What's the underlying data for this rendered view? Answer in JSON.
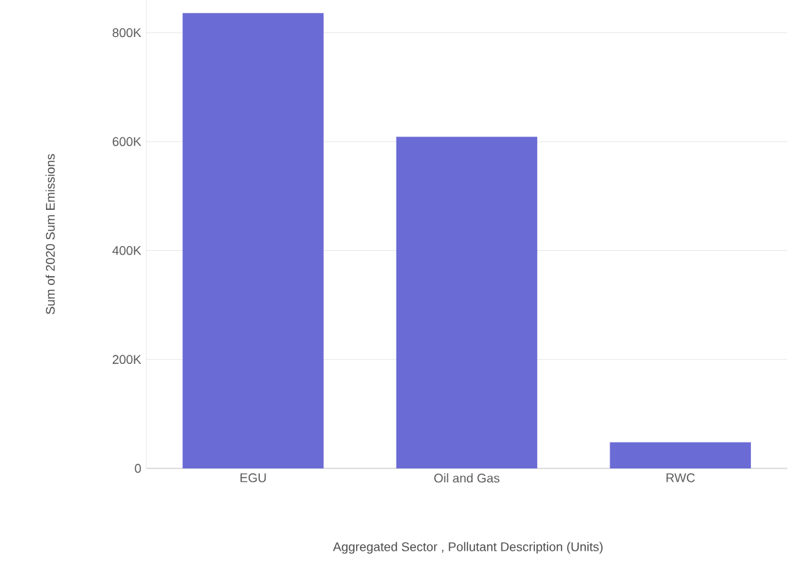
{
  "chart_data": {
    "type": "bar",
    "xlabel": "Aggregated Sector , Pollutant Description (Units)",
    "ylabel": "Sum of 2020 Sum Emissions",
    "categories": [
      "EGU",
      "Oil and Gas",
      "RWC"
    ],
    "values": [
      836000,
      609000,
      48000
    ],
    "color": "#6b6bd6",
    "yticks": [
      0,
      {
        "value": 200000,
        "label": "200K"
      },
      {
        "value": 400000,
        "label": "400K"
      },
      {
        "value": 600000,
        "label": "600K"
      },
      {
        "value": 800000,
        "label": "800K"
      }
    ],
    "ylim": [
      0,
      860000
    ],
    "grid": "y"
  }
}
